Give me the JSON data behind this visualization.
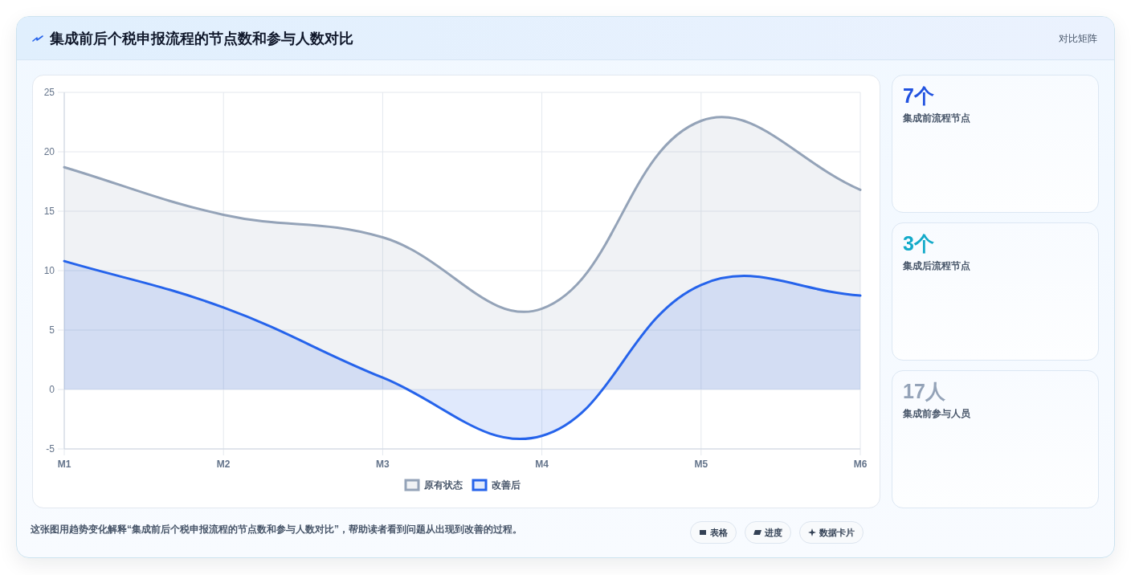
{
  "chart_data": [
    {
      "type": "area",
      "title": "集成前后个税申报流程的节点数和参与人数对比",
      "categories": [
        "M1",
        "M2",
        "M3",
        "M4",
        "M5",
        "M6"
      ],
      "series": [
        {
          "name": "原有状态",
          "color": "#94a3b8",
          "values": [
            18.7,
            14.7,
            12.8,
            6.8,
            22.6,
            16.8
          ]
        },
        {
          "name": "改善后",
          "color": "#2563eb",
          "values": [
            10.8,
            6.9,
            1.0,
            -3.9,
            8.8,
            7.9
          ]
        }
      ],
      "ylim": [
        -5,
        25
      ],
      "yticks": [
        -5,
        0,
        5,
        10,
        15,
        20,
        25
      ],
      "grid": true,
      "legend": "bottom",
      "annotations": [
        "这张图用趋势变化解释“集成前后个税申报流程的节点数和参与人数对比”，帮助读者看到问题从出现到改善的过程。",
        "表格",
        "进度",
        "数据卡片"
      ]
    },
    {
      "type": "other",
      "title": "对比矩阵",
      "annotations": [
        "7个",
        "集成前流程节点",
        "3个",
        "集成后流程节点",
        "17人",
        "集成前参与人员"
      ]
    }
  ]
}
